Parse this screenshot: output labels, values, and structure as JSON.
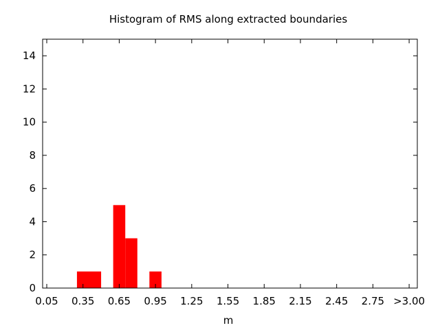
{
  "chart_data": {
    "type": "bar",
    "title": "Histogram of RMS along extracted boundaries",
    "xlabel": "m",
    "ylabel": "",
    "categories": [
      "0.05",
      "0.15",
      "0.25",
      "0.35",
      "0.45",
      "0.55",
      "0.65",
      "0.75",
      "0.85",
      "0.95",
      "1.05",
      "1.15",
      "1.25",
      "1.35",
      "1.45",
      "1.55",
      "1.65",
      "1.75",
      "1.85",
      "1.95",
      "2.05",
      "2.15",
      "2.25",
      "2.35",
      "2.45",
      "2.55",
      "2.65",
      "2.75",
      "2.85",
      "2.95",
      ">3.00"
    ],
    "values": [
      0,
      0,
      0,
      1,
      1,
      0,
      5,
      3,
      0,
      1,
      0,
      0,
      0,
      0,
      0,
      0,
      0,
      0,
      0,
      0,
      0,
      0,
      0,
      0,
      0,
      0,
      0,
      0,
      0,
      0,
      0
    ],
    "x_tick_labels": [
      "0.05",
      "0.35",
      "0.65",
      "0.95",
      "1.25",
      "1.55",
      "1.85",
      "2.15",
      "2.45",
      "2.75",
      ">3.00"
    ],
    "x_tick_every": 3,
    "y_ticks": [
      "0",
      "2",
      "4",
      "6",
      "8",
      "10",
      "12",
      "14"
    ],
    "ylim": [
      0,
      15
    ],
    "bar_color": "#ff0000",
    "grid": false,
    "legend": "none"
  }
}
